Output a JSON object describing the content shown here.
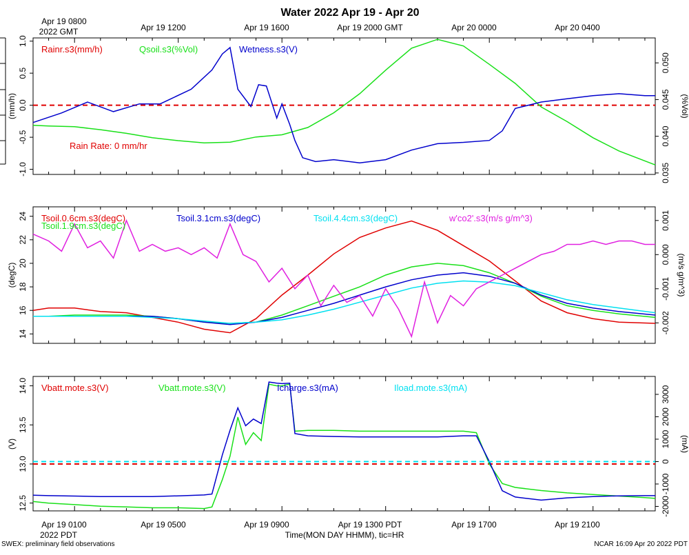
{
  "title": "Water 2022 Apr 19 - Apr 20",
  "top_axis": {
    "gmt_labels": [
      "Apr 19 0800",
      "Apr 19 1200",
      "Apr 19 1600",
      "Apr 19 2000 GMT",
      "Apr 20 0000",
      "Apr 20 0400"
    ],
    "gmt_sublabel": "2022 GMT"
  },
  "bottom_axis": {
    "pdt_labels": [
      "Apr 19 0100",
      "Apr 19 0500",
      "Apr 19 0900",
      "Apr 19 1300 PDT",
      "Apr 19 1700",
      "Apr 19 2100"
    ],
    "pdt_sublabel": "2022 PDT",
    "xlabel": "Time(MON DAY HHMM), tic=HR"
  },
  "footer": {
    "left": "SWEX: preliminary field observations",
    "right": "NCAR 16:09 Apr 20 2022 PDT"
  },
  "colors": {
    "red": "#e00000",
    "green": "#18e018",
    "blue": "#0000cc",
    "cyan": "#00e0f0",
    "magenta": "#e020e0",
    "black": "#000000"
  },
  "chart_data": [
    {
      "type": "line",
      "panel": "water",
      "x_unit": "hours since Apr 19 0000 PDT",
      "xlim": [
        -0.6,
        23.4
      ],
      "left_axis": {
        "label": "(mm/h)",
        "ylim": [
          -1.08,
          1.05
        ],
        "ticks": [
          "-1.0",
          "-0.5",
          "0.0",
          "0.5",
          "1.0"
        ]
      },
      "right_axis": {
        "label": "(%Vol)",
        "ylim": [
          0.0348,
          0.0534
        ],
        "ticks": [
          "0.035",
          "0.040",
          "0.045",
          "0.050"
        ]
      },
      "annotation": "Rain Rate: 0 mm/hr",
      "series": [
        {
          "name": "Rainr.s3(mm/h)",
          "axis": "left",
          "color": "red",
          "x": [
            -0.6,
            23.4
          ],
          "y": [
            0.0,
            0.0
          ]
        },
        {
          "name": "Qsoil.s3(%Vol)",
          "axis": "right",
          "color": "green",
          "x": [
            -0.6,
            0,
            1,
            2,
            3,
            4,
            5,
            6,
            7,
            8,
            9,
            10,
            11,
            12,
            13,
            14,
            15,
            16,
            17,
            18,
            19,
            20,
            21,
            22,
            23.4
          ],
          "y": [
            0.0415,
            0.0414,
            0.0413,
            0.0409,
            0.0404,
            0.0398,
            0.0394,
            0.0391,
            0.0392,
            0.0399,
            0.0402,
            0.0412,
            0.0432,
            0.0458,
            0.049,
            0.052,
            0.0532,
            0.0523,
            0.0498,
            0.0472,
            0.044,
            0.042,
            0.0398,
            0.038,
            0.0361
          ]
        },
        {
          "name": "Wetness.s3(V)",
          "axis": "left",
          "color": "blue",
          "x": [
            -0.6,
            0.5,
            1.5,
            2.5,
            3.5,
            4.3,
            5.5,
            6.3,
            6.7,
            7.0,
            7.3,
            7.8,
            8.1,
            8.4,
            8.8,
            9.0,
            9.3,
            9.5,
            9.8,
            10.3,
            11.0,
            12.0,
            13.0,
            14.0,
            15.0,
            16.0,
            17.0,
            17.5,
            18.0,
            19.0,
            20.0,
            21.0,
            22.0,
            23.0,
            23.4
          ],
          "y": [
            -0.27,
            -0.12,
            0.05,
            -0.1,
            0.02,
            0.02,
            0.25,
            0.55,
            0.8,
            0.9,
            0.25,
            -0.02,
            0.32,
            0.3,
            -0.2,
            0.02,
            -0.3,
            -0.55,
            -0.82,
            -0.88,
            -0.85,
            -0.9,
            -0.85,
            -0.7,
            -0.6,
            -0.58,
            -0.55,
            -0.4,
            -0.05,
            0.05,
            0.1,
            0.15,
            0.18,
            0.15,
            0.15
          ]
        }
      ]
    },
    {
      "type": "line",
      "panel": "temperature",
      "x_unit": "hours since Apr 19 0000 PDT",
      "xlim": [
        -0.6,
        23.4
      ],
      "left_axis": {
        "label": "(degC)",
        "ylim": [
          13.2,
          24.8
        ],
        "ticks": [
          "14",
          "16",
          "18",
          "20",
          "22",
          "24"
        ]
      },
      "right_axis": {
        "label": "(m/s g/m^3)",
        "ylim": [
          -0.0026,
          0.0014
        ],
        "ticks": [
          "-0.002",
          "-0.001",
          "0.000",
          "0.001"
        ]
      },
      "series": [
        {
          "name": "Tsoil.0.6cm.s3(degC)",
          "axis": "left",
          "color": "red",
          "x": [
            -0.6,
            0,
            1,
            2,
            3,
            4,
            5,
            6,
            7,
            8,
            9,
            10,
            11,
            12,
            13,
            14,
            15,
            16,
            17,
            18,
            19,
            20,
            21,
            22,
            23.4
          ],
          "y": [
            16.0,
            16.2,
            16.2,
            15.9,
            15.8,
            15.4,
            15.0,
            14.4,
            14.1,
            15.3,
            17.3,
            19.0,
            20.8,
            22.2,
            23.0,
            23.6,
            22.8,
            21.5,
            20.2,
            18.5,
            16.8,
            15.8,
            15.3,
            15.0,
            14.9
          ]
        },
        {
          "name": "Tsoil.1.9cm.s3(degC)",
          "axis": "left",
          "color": "green",
          "x": [
            -0.6,
            0,
            1,
            2,
            3,
            4,
            5,
            6,
            7,
            8,
            9,
            10,
            11,
            12,
            13,
            14,
            15,
            16,
            17,
            18,
            19,
            20,
            21,
            22,
            23.4
          ],
          "y": [
            15.5,
            15.5,
            15.6,
            15.6,
            15.6,
            15.5,
            15.3,
            15.0,
            14.9,
            15.0,
            15.6,
            16.4,
            17.2,
            18.0,
            19.0,
            19.7,
            20.0,
            19.8,
            19.2,
            18.3,
            17.2,
            16.4,
            16.0,
            15.7,
            15.4
          ]
        },
        {
          "name": "Tsoil.3.1cm.s3(degC)",
          "axis": "left",
          "color": "blue",
          "x": [
            -0.6,
            0,
            1,
            2,
            3,
            4,
            5,
            6,
            7,
            8,
            9,
            10,
            11,
            12,
            13,
            14,
            15,
            16,
            17,
            18,
            19,
            20,
            21,
            22,
            23.4
          ],
          "y": [
            15.5,
            15.5,
            15.5,
            15.5,
            15.5,
            15.5,
            15.3,
            15.0,
            14.8,
            15.0,
            15.4,
            16.0,
            16.6,
            17.3,
            18.0,
            18.6,
            19.0,
            19.2,
            18.9,
            18.3,
            17.3,
            16.6,
            16.2,
            15.9,
            15.6
          ]
        },
        {
          "name": "Tsoil.4.4cm.s3(degC)",
          "axis": "left",
          "color": "cyan",
          "x": [
            -0.6,
            0,
            1,
            2,
            3,
            4,
            5,
            6,
            7,
            8,
            9,
            10,
            11,
            12,
            13,
            14,
            15,
            16,
            17,
            18,
            19,
            20,
            21,
            22,
            23.4
          ],
          "y": [
            15.5,
            15.5,
            15.5,
            15.5,
            15.5,
            15.4,
            15.3,
            15.1,
            14.9,
            15.0,
            15.2,
            15.6,
            16.1,
            16.7,
            17.3,
            17.9,
            18.3,
            18.5,
            18.4,
            18.1,
            17.5,
            16.9,
            16.5,
            16.2,
            15.8
          ]
        },
        {
          "name": "w'co2'.s3(m/s g/m^3)",
          "axis": "right",
          "color": "magenta",
          "x": [
            -0.6,
            0,
            0.5,
            1,
            1.5,
            2,
            2.5,
            3,
            3.5,
            4,
            4.5,
            5,
            5.5,
            6,
            6.5,
            7,
            7.5,
            8,
            8.5,
            9,
            9.5,
            10,
            10.5,
            11,
            11.5,
            12,
            12.5,
            13,
            13.5,
            14,
            14.5,
            15,
            15.5,
            16,
            16.5,
            17,
            17.5,
            18,
            18.5,
            19,
            19.5,
            20,
            20.5,
            21,
            21.5,
            22,
            22.5,
            23,
            23.4
          ],
          "y": [
            0.0006,
            0.0004,
            0.0001,
            0.0009,
            0.0002,
            0.0004,
            -0.0001,
            0.001,
            0.0001,
            0.0003,
            0.0001,
            0.0002,
            0.0,
            0.0002,
            -0.0001,
            0.0009,
            0.0,
            -0.0002,
            -0.0008,
            -0.0004,
            -0.001,
            -0.0006,
            -0.0015,
            -0.0009,
            -0.0014,
            -0.0012,
            -0.0018,
            -0.001,
            -0.0016,
            -0.0024,
            -0.0008,
            -0.002,
            -0.0012,
            -0.0015,
            -0.001,
            -0.0008,
            -0.0006,
            -0.0004,
            -0.0002,
            0.0,
            0.0001,
            0.0003,
            0.0003,
            0.0004,
            0.0003,
            0.0004,
            0.0004,
            0.0003,
            0.0003
          ]
        }
      ]
    },
    {
      "type": "line",
      "panel": "power",
      "x_unit": "hours since Apr 19 0000 PDT",
      "xlim": [
        -0.6,
        23.4
      ],
      "left_axis": {
        "label": "(V)",
        "ylim": [
          12.4,
          14.12
        ],
        "ticks": [
          "12.5",
          "13.0",
          "13.5",
          "14.0"
        ]
      },
      "right_axis": {
        "label": "(mA)",
        "ylim": [
          -2200,
          3800
        ],
        "ticks": [
          "-2000",
          "-1000",
          "0",
          "1000",
          "2000",
          "3000"
        ]
      },
      "series": [
        {
          "name": "Vbatt.mote.s3(V)",
          "axis": "left",
          "color": "red",
          "x": [
            -0.6,
            23.4
          ],
          "y": [
            13.0,
            13.0
          ]
        },
        {
          "name": "Vbatt.mote.s3(V)",
          "axis": "left",
          "color": "green",
          "x": [
            -0.6,
            0,
            1,
            2,
            3,
            4,
            5,
            6,
            6.3,
            6.7,
            7.0,
            7.3,
            7.6,
            7.9,
            8.2,
            8.5,
            8.8,
            9.0,
            9.3,
            9.5,
            10,
            11,
            12,
            13,
            14,
            15,
            16,
            16.5,
            17.0,
            17.5,
            18.0,
            19,
            20,
            21,
            22,
            23,
            23.4
          ],
          "y": [
            12.52,
            12.5,
            12.48,
            12.46,
            12.45,
            12.44,
            12.44,
            12.43,
            12.45,
            12.8,
            13.1,
            13.6,
            13.25,
            13.4,
            13.3,
            14.02,
            14.0,
            14.0,
            14.02,
            13.42,
            13.43,
            13.43,
            13.42,
            13.42,
            13.42,
            13.42,
            13.42,
            13.4,
            13.0,
            12.75,
            12.7,
            12.66,
            12.63,
            12.61,
            12.59,
            12.57,
            12.56
          ]
        },
        {
          "name": "Icharge.s3(mA)",
          "axis": "right",
          "color": "blue",
          "x": [
            -0.6,
            0,
            1,
            2,
            3,
            4,
            5,
            6,
            6.3,
            6.7,
            7.0,
            7.3,
            7.6,
            7.9,
            8.2,
            8.5,
            8.8,
            9.0,
            9.3,
            9.5,
            10,
            11,
            12,
            13,
            14,
            15,
            16,
            16.5,
            17.0,
            17.5,
            18.0,
            19,
            20,
            21,
            22,
            23,
            23.4
          ],
          "y": [
            -1500,
            -1520,
            -1540,
            -1560,
            -1560,
            -1560,
            -1530,
            -1490,
            -1450,
            300,
            1400,
            2400,
            1600,
            1900,
            1700,
            3550,
            3500,
            3480,
            3500,
            1250,
            1150,
            1120,
            1100,
            1100,
            1100,
            1100,
            1150,
            1150,
            0,
            -1300,
            -1580,
            -1720,
            -1620,
            -1560,
            -1530,
            -1520,
            -1520
          ]
        },
        {
          "name": "Iload.mote.s3(mA)",
          "axis": "right",
          "color": "cyan",
          "x": [
            -0.6,
            23.4
          ],
          "y": [
            0,
            0
          ]
        }
      ]
    }
  ]
}
